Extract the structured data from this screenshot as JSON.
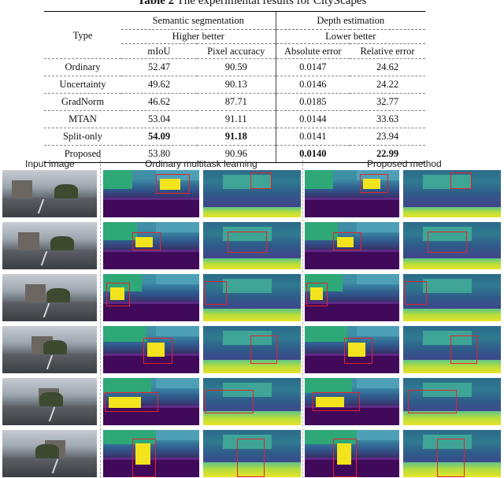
{
  "caption": {
    "label": "Table 2",
    "text": "The experimental results for CityScapes"
  },
  "table": {
    "type_header": "Type",
    "groups": [
      {
        "name": "Semantic segmentation",
        "note": "Higher better",
        "cols": [
          "mIoU",
          "Pixel accuracy"
        ]
      },
      {
        "name": "Depth estimation",
        "note": "Lower better",
        "cols": [
          "Absolute error",
          "Relative error"
        ]
      }
    ],
    "rows": [
      {
        "type": "Ordinary",
        "values": [
          "52.47",
          "90.59",
          "0.0147",
          "24.62"
        ]
      },
      {
        "type": "Uncertainty",
        "values": [
          "49.62",
          "90.13",
          "0.0146",
          "24.22"
        ]
      },
      {
        "type": "GradNorm",
        "values": [
          "46.62",
          "87.71",
          "0.0185",
          "32.77"
        ]
      },
      {
        "type": "MTAN",
        "values": [
          "53.04",
          "91.11",
          "0.0144",
          "33.63"
        ]
      },
      {
        "type": "Split-only",
        "values": [
          "54.09",
          "91.18",
          "0.0141",
          "23.94"
        ]
      },
      {
        "type": "Proposed",
        "values": [
          "53.80",
          "90.96",
          "0.0140",
          "22.99"
        ]
      }
    ]
  },
  "figure": {
    "columns": [
      "Input image",
      "Ordinary multitask learning",
      "Proposed method"
    ]
  },
  "colors": {
    "box": "#e5232b",
    "car": "#f3e41d",
    "vegetation": "#2ea877",
    "road": "#40095a"
  }
}
